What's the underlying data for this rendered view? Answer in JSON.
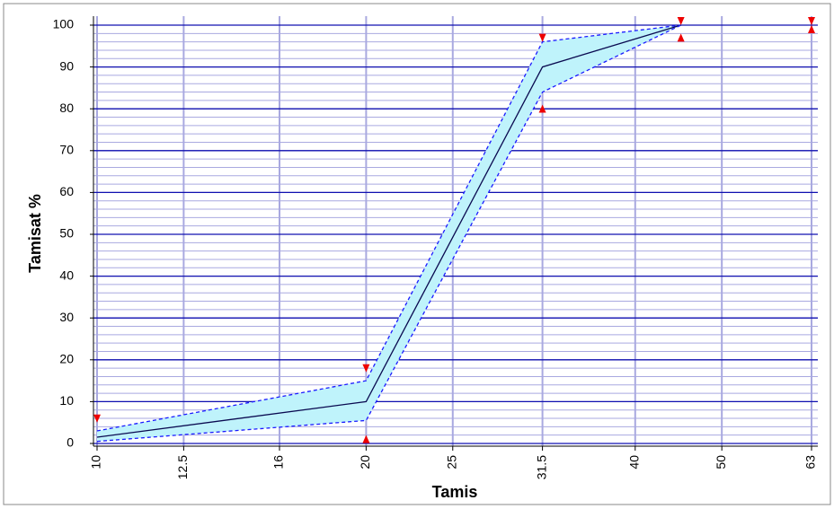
{
  "chart_data": {
    "type": "line",
    "x_label": "Tamis",
    "y_label": "Tamisat %",
    "x_scale": "log",
    "xlim": [
      10,
      63
    ],
    "xticks": [
      10,
      12.5,
      16,
      20,
      25,
      31.5,
      40,
      50,
      63
    ],
    "ylim": [
      0,
      100
    ],
    "yticks": [
      0,
      10,
      20,
      30,
      40,
      50,
      60,
      70,
      80,
      90,
      100
    ],
    "grid": true,
    "minor_grid_step": 2,
    "band_color": "#bff3fb",
    "x": [
      10,
      20,
      31.5,
      45
    ],
    "series": [
      {
        "color": "#1a1aff",
        "dash": true,
        "values": [
          3,
          15,
          96,
          100
        ]
      },
      {
        "color": "#0a0a50",
        "dash": false,
        "values": [
          1.5,
          10,
          90,
          100
        ]
      },
      {
        "color": "#1a1aff",
        "dash": true,
        "values": [
          0.5,
          5.5,
          84,
          100
        ]
      }
    ],
    "markers": [
      {
        "shape": "down",
        "color": "#ee0000",
        "x": [
          10,
          20,
          31.5,
          45,
          63
        ],
        "values": [
          5,
          17,
          96,
          100,
          100
        ]
      },
      {
        "shape": "up",
        "color": "#ee0000",
        "x": [
          20,
          31.5,
          45,
          63
        ],
        "values": [
          2,
          81,
          98,
          100
        ]
      }
    ]
  }
}
